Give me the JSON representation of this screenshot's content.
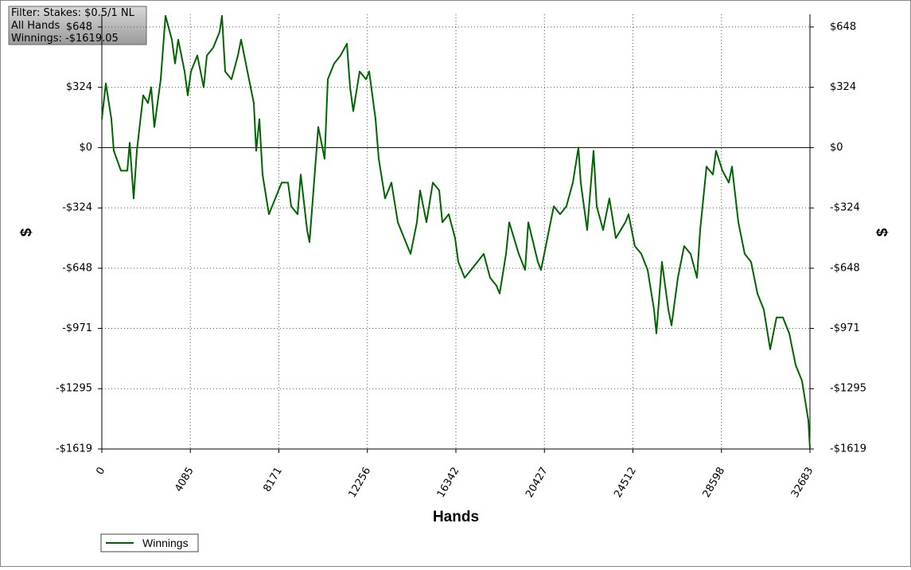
{
  "chart_data": {
    "type": "line",
    "annotations": [
      "Filter: Stakes: $0.5/1 NL",
      "All Hands",
      "Winnings: -$1619.05"
    ],
    "x_label": "Hands",
    "y_label": "$",
    "y2_label": "$",
    "grid": true,
    "legend": "bottom-left",
    "xlim": [
      0,
      32683
    ],
    "ylim": [
      -1619,
      716
    ],
    "xticks": [
      0,
      4085,
      8171,
      12256,
      16342,
      20427,
      24512,
      28598,
      32683
    ],
    "yticks": [
      {
        "value": 648,
        "label": "$648"
      },
      {
        "value": 324,
        "label": "$324"
      },
      {
        "value": 0,
        "label": "$0"
      },
      {
        "value": -324,
        "label": "-$324"
      },
      {
        "value": -648,
        "label": "-$648"
      },
      {
        "value": -971,
        "label": "-$971"
      },
      {
        "value": -1295,
        "label": "-$1295"
      },
      {
        "value": -1619,
        "label": "-$1619"
      }
    ],
    "x": [
      0,
      184,
      441,
      551,
      881,
      1175,
      1285,
      1469,
      1616,
      1909,
      2130,
      2277,
      2424,
      2717,
      2938,
      3231,
      3378,
      3525,
      3819,
      3966,
      4113,
      4406,
      4700,
      4847,
      5141,
      5435,
      5545,
      5692,
      5985,
      6279,
      6426,
      6720,
      7014,
      7124,
      7271,
      7417,
      7711,
      8005,
      8299,
      8593,
      8739,
      9033,
      9180,
      9474,
      9584,
      9878,
      9988,
      10282,
      10428,
      10722,
      11016,
      11310,
      11457,
      11604,
      11897,
      12191,
      12338,
      12632,
      12779,
      13073,
      13366,
      13660,
      13954,
      14247,
      14541,
      14688,
      14982,
      15276,
      15569,
      15716,
      16010,
      16304,
      16451,
      16744,
      17038,
      17332,
      17626,
      17919,
      18213,
      18360,
      18654,
      18801,
      19242,
      19535,
      19682,
      20123,
      20269,
      20563,
      20857,
      21151,
      21444,
      21738,
      21995,
      22105,
      22399,
      22693,
      22840,
      23134,
      23427,
      23721,
      24162,
      24309,
      24602,
      24896,
      25190,
      25484,
      25594,
      25851,
      26145,
      26292,
      26586,
      26879,
      27173,
      27467,
      27614,
      27908,
      28202,
      28348,
      28642,
      28936,
      29083,
      29377,
      29670,
      29964,
      30258,
      30552,
      30846,
      31139,
      31433,
      31727,
      32021,
      32314,
      32608,
      32683
    ],
    "series": [
      {
        "name": "Winnings",
        "color": "#006400",
        "values": [
          153,
          345,
          153,
          -17,
          -124,
          -124,
          26,
          -273,
          -17,
          281,
          239,
          324,
          111,
          367,
          708,
          580,
          452,
          580,
          409,
          281,
          409,
          495,
          324,
          495,
          537,
          622,
          708,
          409,
          367,
          495,
          580,
          409,
          239,
          -17,
          153,
          -145,
          -358,
          -273,
          -188,
          -188,
          -315,
          -358,
          -145,
          -443,
          -507,
          -60,
          111,
          -60,
          367,
          452,
          495,
          558,
          324,
          196,
          409,
          367,
          409,
          153,
          -60,
          -273,
          -188,
          -401,
          -486,
          -571,
          -401,
          -230,
          -401,
          -188,
          -230,
          -401,
          -358,
          -486,
          -614,
          -699,
          -657,
          -614,
          -571,
          -699,
          -742,
          -784,
          -571,
          -401,
          -571,
          -657,
          -401,
          -614,
          -657,
          -486,
          -315,
          -358,
          -315,
          -188,
          0,
          -188,
          -443,
          -17,
          -315,
          -443,
          -273,
          -486,
          -401,
          -358,
          -529,
          -571,
          -657,
          -870,
          -998,
          -614,
          -870,
          -955,
          -699,
          -529,
          -571,
          -699,
          -443,
          -102,
          -145,
          -17,
          -124,
          -188,
          -102,
          -401,
          -571,
          -614,
          -784,
          -870,
          -1083,
          -912,
          -912,
          -998,
          -1168,
          -1253,
          -1466,
          -1619
        ]
      }
    ]
  }
}
